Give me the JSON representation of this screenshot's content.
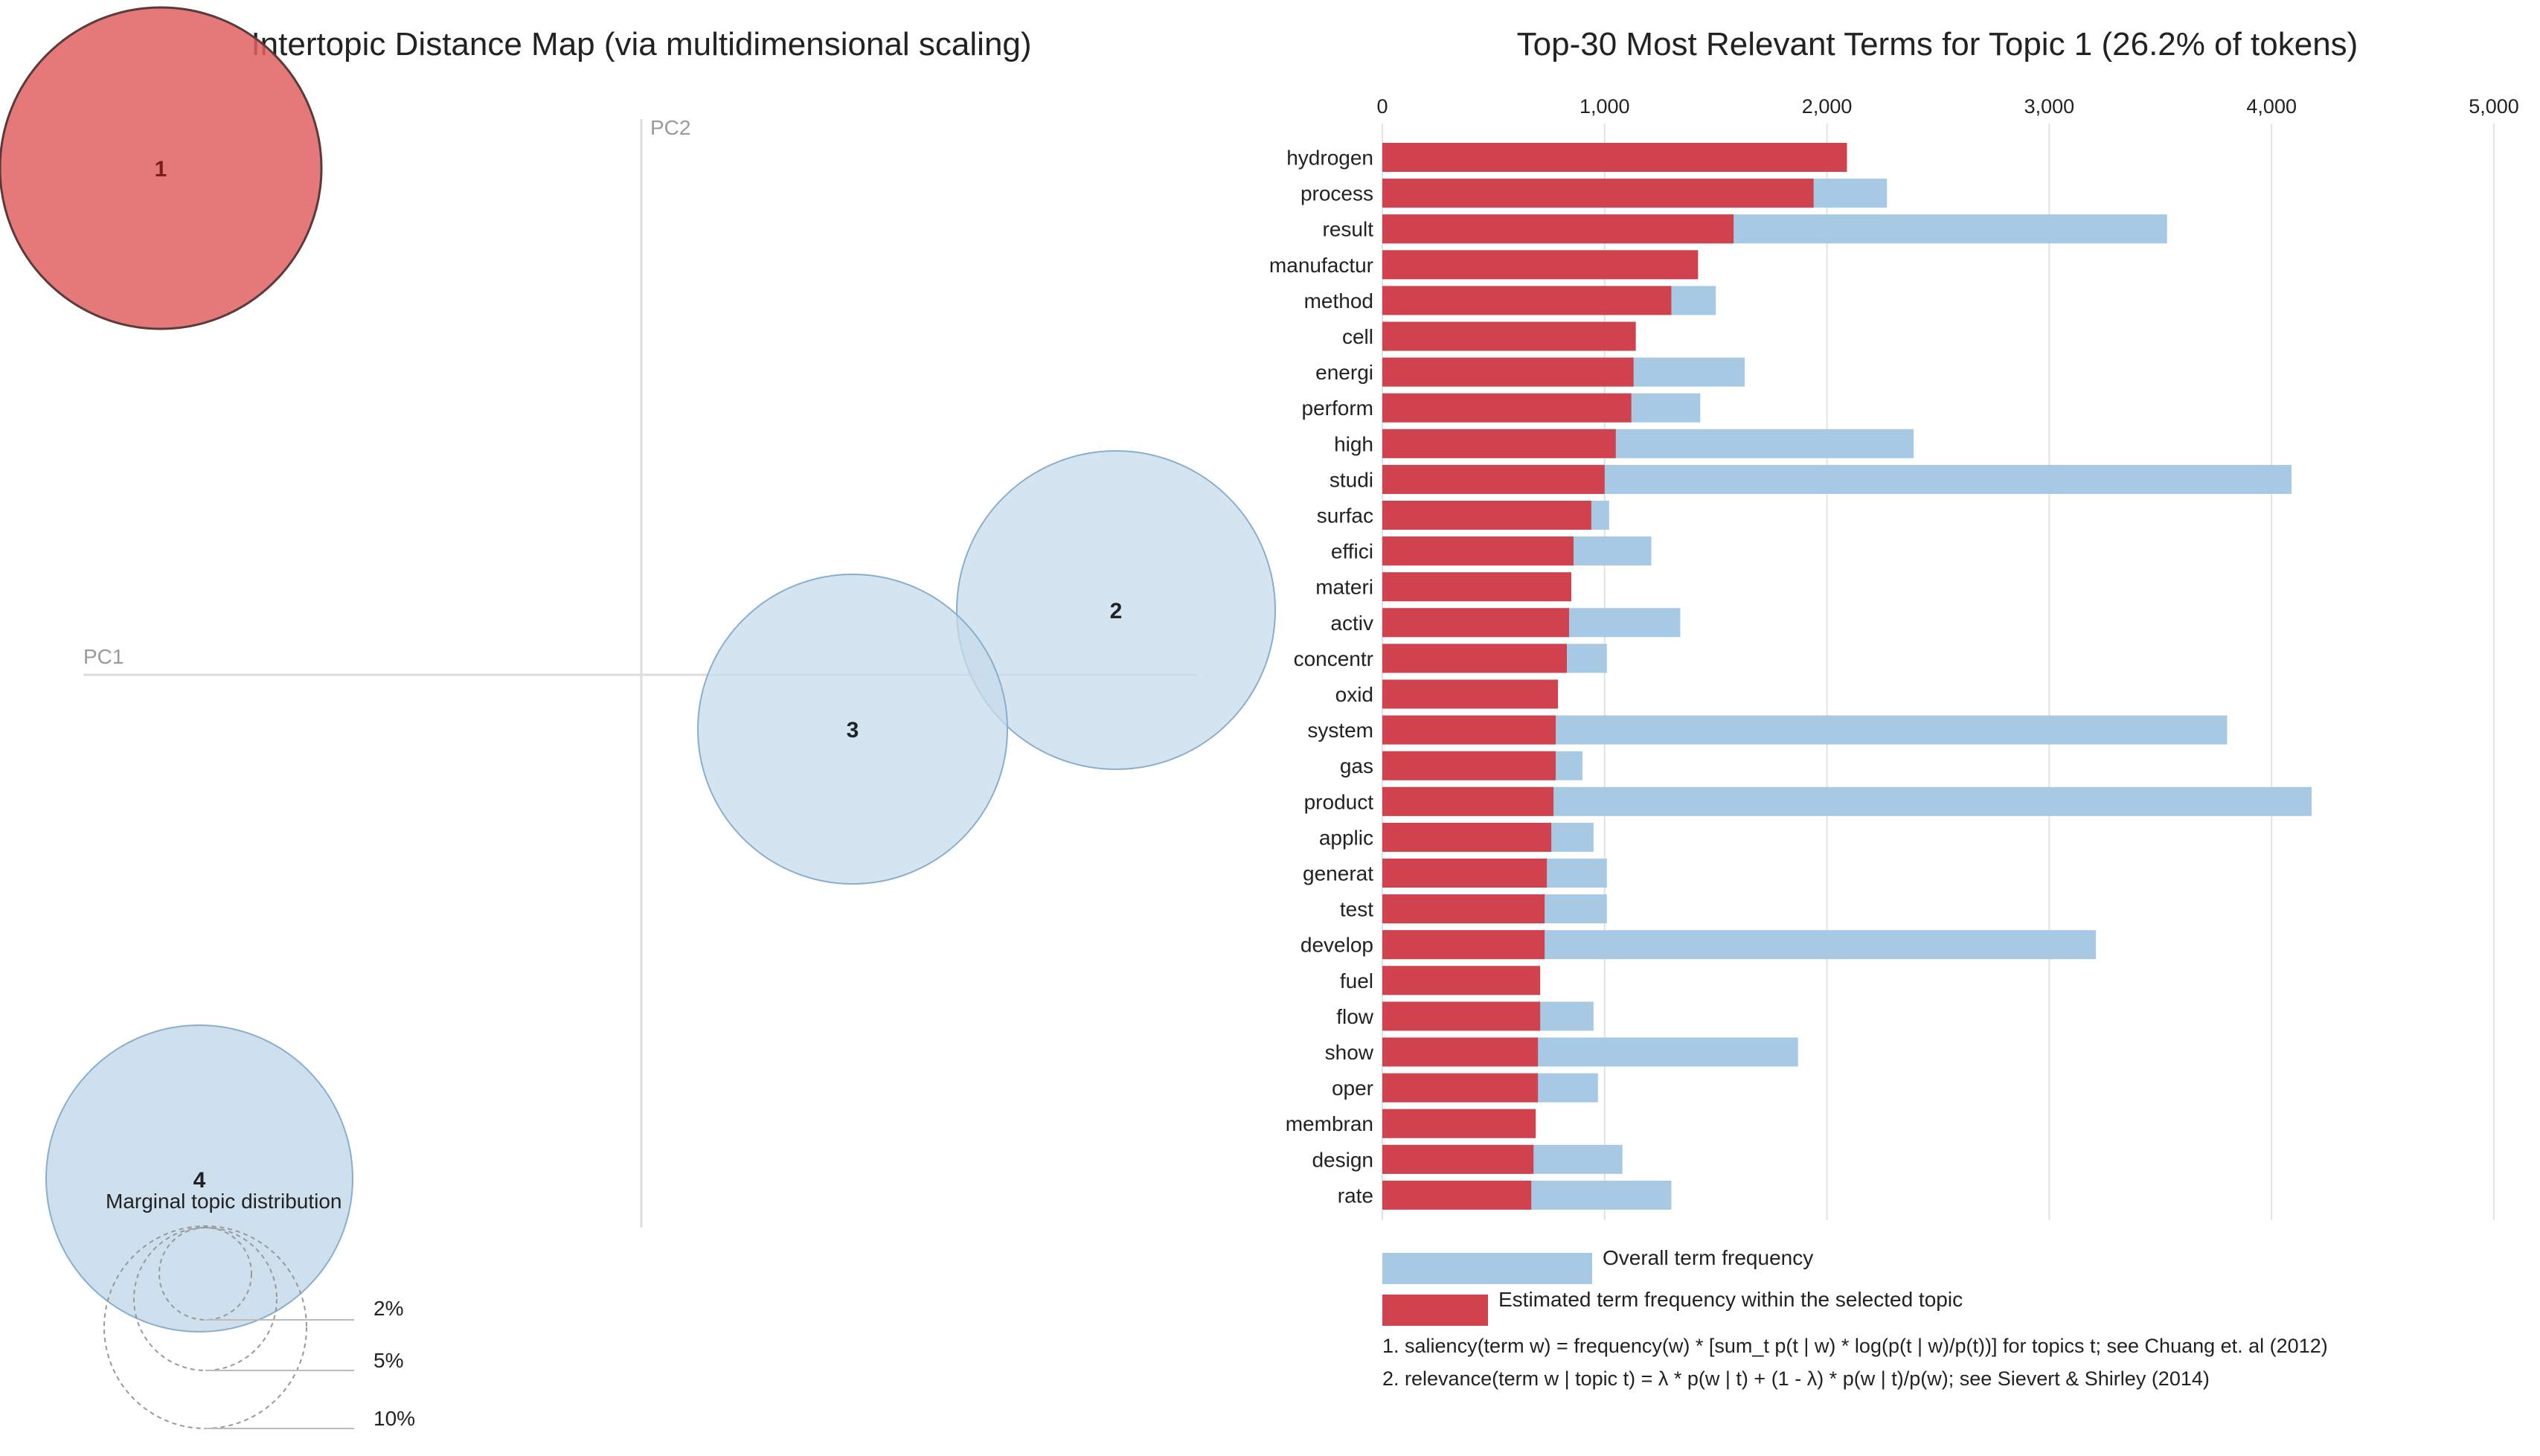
{
  "chart_data": [
    {
      "type": "scatter",
      "title": "Intertopic Distance Map (via multidimensional scaling)",
      "xlabel": "PC1",
      "ylabel": "PC2",
      "topics": [
        {
          "label": "1",
          "selected": true
        },
        {
          "label": "2",
          "selected": false
        },
        {
          "label": "3",
          "selected": false
        },
        {
          "label": "4",
          "selected": false
        }
      ],
      "marginal": {
        "title": "Marginal topic distribution",
        "levels": [
          "2%",
          "5%",
          "10%"
        ]
      },
      "colors": {
        "selected_fill": "#e06060",
        "selected_stroke": "#5a3a3a",
        "default_fill": "#c6dbeb",
        "default_stroke": "#8aaecb"
      }
    },
    {
      "type": "bar",
      "title": "Top-30 Most Relevant Terms for Topic 1 (26.2% of tokens)",
      "xlim": [
        0,
        5000
      ],
      "ticks": [
        0,
        1000,
        2000,
        3000,
        4000,
        5000
      ],
      "tick_labels": [
        "0",
        "1,000",
        "2,000",
        "3,000",
        "4,000",
        "5,000"
      ],
      "categories": [
        "hydrogen",
        "process",
        "result",
        "manufactur",
        "method",
        "cell",
        "energi",
        "perform",
        "high",
        "studi",
        "surfac",
        "effici",
        "materi",
        "activ",
        "concentr",
        "oxid",
        "system",
        "gas",
        "product",
        "applic",
        "generat",
        "test",
        "develop",
        "fuel",
        "flow",
        "show",
        "oper",
        "membran",
        "design",
        "rate"
      ],
      "series": [
        {
          "name": "Overall term frequency",
          "color": "#a7c9e3",
          "values": [
            2090,
            2270,
            3530,
            1420,
            1500,
            1140,
            1630,
            1430,
            2390,
            4090,
            1020,
            1210,
            850,
            1340,
            1010,
            790,
            3800,
            900,
            4180,
            950,
            1010,
            1010,
            3210,
            710,
            950,
            1870,
            970,
            690,
            1080,
            1300
          ]
        },
        {
          "name": "Estimated term frequency within the selected topic",
          "color": "#d0424d",
          "values": [
            2090,
            1940,
            1580,
            1420,
            1300,
            1140,
            1130,
            1120,
            1050,
            1000,
            940,
            860,
            850,
            840,
            830,
            790,
            780,
            780,
            770,
            760,
            740,
            730,
            730,
            710,
            710,
            700,
            700,
            690,
            680,
            670
          ]
        }
      ]
    }
  ],
  "footnotes": [
    "1. saliency(term w) = frequency(w) * [sum_t p(t | w) * log(p(t | w)/p(t))] for topics t; see Chuang et. al (2012)",
    "2. relevance(term w | topic t) = λ * p(w | t) + (1 - λ) * p(w | t)/p(w); see Sievert & Shirley (2014)"
  ]
}
